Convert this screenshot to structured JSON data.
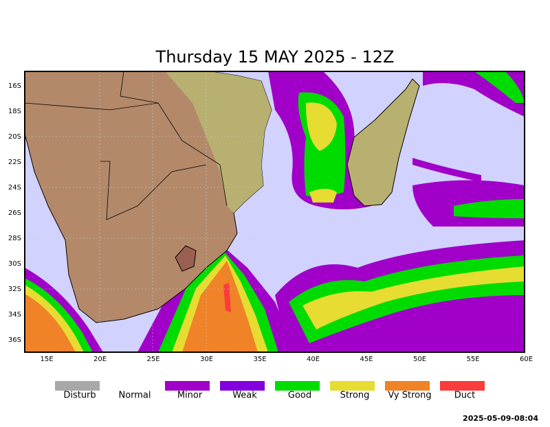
{
  "header": {
    "title": "Thursday 15 MAY 2025 - 12Z"
  },
  "map": {
    "lat_ticks": [
      "16S",
      "18S",
      "20S",
      "22S",
      "24S",
      "26S",
      "28S",
      "30S",
      "32S",
      "34S",
      "36S"
    ],
    "lon_ticks": [
      "15E",
      "20E",
      "25E",
      "30E",
      "35E",
      "40E",
      "45E",
      "50E",
      "55E",
      "60E"
    ]
  },
  "legend": [
    {
      "label": "Disturb",
      "color": "#a8a8a8"
    },
    {
      "label": "Normal",
      "color": "#ffffff"
    },
    {
      "label": "Minor",
      "color": "#a000c8"
    },
    {
      "label": "Weak",
      "color": "#8200dc"
    },
    {
      "label": "Good",
      "color": "#00dc00"
    },
    {
      "label": "Strong",
      "color": "#e6dc32"
    },
    {
      "label": "Vy Strong",
      "color": "#f08228"
    },
    {
      "label": "Duct",
      "color": "#fa3c3c"
    }
  ],
  "footer": {
    "timestamp": "2025-05-09-08:04"
  }
}
